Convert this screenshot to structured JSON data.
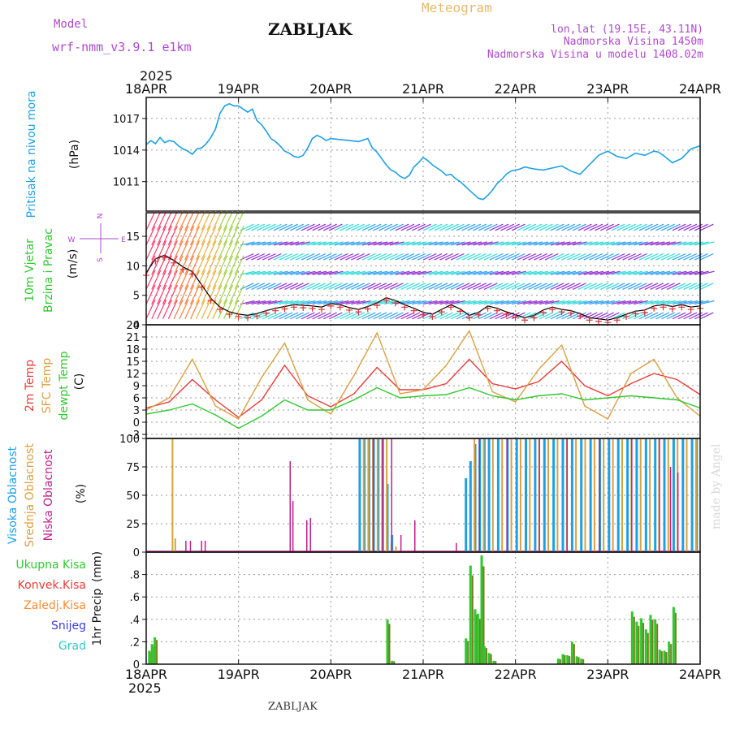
{
  "header": {
    "model_label": "Model",
    "model_name": "wrf-nmm_v3.9.1  e1km",
    "station_title": "ZABLJAK",
    "product_title": "Meteogram",
    "location_line": "lon,lat (19.15E, 43.11N)",
    "elevation_line": "Nadmorska Visina 1450m",
    "model_elevation_line": "Nadmorska Visina u modelu 1408.02m",
    "year_top": "2025",
    "year_bottom": "2025",
    "footer_station": "ZABLJAK",
    "watermark": "made by Angel"
  },
  "colors": {
    "pressure": "#1ea0e6",
    "temp2m": "#e83a3a",
    "sfc_temp": "#d9a040",
    "dewpt": "#2ec82e",
    "purple_text": "#b048d0",
    "meteogram_text": "#e8b870",
    "wind_black": "#000000",
    "wind_cross": "#e03030",
    "cloud_high": "#1ea0e6",
    "cloud_mid": "#d9a040",
    "cloud_low": "#c0208a",
    "precip_total": "#2ec82e",
    "precip_conv": "#e83a3a",
    "precip_frz": "#ff8a30",
    "precip_snow": "#3c3ce0",
    "precip_grad": "#30c8c8",
    "precip_bar": "#7a7a20"
  },
  "chart_data": [
    {
      "type": "line",
      "ylabel_main": "Pritisak na nivou mora",
      "ylabel_unit": "(hPa)",
      "x_ticks": [
        "18APR",
        "19APR",
        "20APR",
        "21APR",
        "22APR",
        "23APR",
        "24APR"
      ],
      "xlim_days": [
        0,
        6
      ],
      "ylim": [
        1008.2,
        1019.0
      ],
      "y_ticks": [
        1011,
        1014,
        1017
      ],
      "grid": true,
      "series": [
        {
          "color_key": "pressure",
          "x": [
            0,
            0.05,
            0.1,
            0.15,
            0.2,
            0.25,
            0.3,
            0.35,
            0.4,
            0.45,
            0.5,
            0.55,
            0.6,
            0.65,
            0.7,
            0.75,
            0.8,
            0.85,
            0.9,
            0.95,
            1.0,
            1.05,
            1.1,
            1.15,
            1.2,
            1.25,
            1.3,
            1.35,
            1.4,
            1.45,
            1.5,
            1.55,
            1.6,
            1.65,
            1.7,
            1.75,
            1.8,
            1.85,
            1.9,
            1.95,
            2.0,
            2.1,
            2.2,
            2.3,
            2.4,
            2.45,
            2.5,
            2.55,
            2.6,
            2.65,
            2.7,
            2.75,
            2.8,
            2.85,
            2.9,
            2.95,
            3.0,
            3.05,
            3.1,
            3.15,
            3.2,
            3.25,
            3.3,
            3.35,
            3.4,
            3.45,
            3.5,
            3.55,
            3.6,
            3.65,
            3.7,
            3.75,
            3.8,
            3.85,
            3.9,
            3.95,
            4.0,
            4.05,
            4.1,
            4.2,
            4.3,
            4.4,
            4.5,
            4.6,
            4.7,
            4.8,
            4.9,
            5.0,
            5.1,
            5.2,
            5.3,
            5.4,
            5.5,
            5.55,
            5.6,
            5.7,
            5.8,
            5.9,
            6.0
          ],
          "y": [
            1014.5,
            1014.9,
            1014.6,
            1015.2,
            1014.7,
            1014.9,
            1014.8,
            1014.4,
            1014.1,
            1013.9,
            1013.6,
            1014.1,
            1014.2,
            1014.6,
            1015.2,
            1016.0,
            1017.5,
            1018.2,
            1018.4,
            1018.2,
            1018.2,
            1017.9,
            1017.6,
            1017.9,
            1016.8,
            1016.4,
            1015.8,
            1015.1,
            1014.8,
            1014.4,
            1013.9,
            1013.7,
            1013.4,
            1013.3,
            1013.5,
            1014.2,
            1015.1,
            1015.4,
            1015.2,
            1014.9,
            1015.1,
            1015.0,
            1014.9,
            1014.8,
            1015.1,
            1014.2,
            1013.8,
            1013.2,
            1012.6,
            1012.1,
            1011.9,
            1011.5,
            1011.3,
            1011.6,
            1012.4,
            1012.8,
            1013.3,
            1013.0,
            1012.6,
            1012.3,
            1012.0,
            1011.6,
            1011.7,
            1011.3,
            1011.0,
            1010.6,
            1010.2,
            1009.8,
            1009.4,
            1009.3,
            1009.7,
            1010.2,
            1010.8,
            1011.2,
            1011.7,
            1012.0,
            1012.1,
            1012.2,
            1012.4,
            1012.2,
            1012.1,
            1012.3,
            1012.5,
            1012.0,
            1011.7,
            1012.6,
            1013.5,
            1013.9,
            1013.4,
            1013.2,
            1013.7,
            1013.5,
            1013.9,
            1013.8,
            1013.5,
            1012.8,
            1013.2,
            1014.1,
            1014.4
          ]
        }
      ]
    },
    {
      "type": "scatter",
      "ylabel_main": "10m Vjetar",
      "ylabel_sub": "Brzina i Pravac",
      "ylabel_unit": "(m/s)",
      "compass": {
        "n": "N",
        "e": "E",
        "w": "W",
        "s": "S"
      },
      "ylim": [
        0,
        19
      ],
      "y_ticks": [
        0,
        5,
        10,
        15
      ],
      "grid": true,
      "series": [
        {
          "name": "speed",
          "x": [
            0,
            0.1,
            0.2,
            0.3,
            0.4,
            0.5,
            0.6,
            0.7,
            0.8,
            0.9,
            1.0,
            1.1,
            1.2,
            1.3,
            1.4,
            1.5,
            1.6,
            1.7,
            1.8,
            1.9,
            2.0,
            2.1,
            2.2,
            2.3,
            2.4,
            2.5,
            2.6,
            2.7,
            2.8,
            2.9,
            3.0,
            3.1,
            3.2,
            3.3,
            3.4,
            3.5,
            3.6,
            3.7,
            3.8,
            3.9,
            4.0,
            4.1,
            4.2,
            4.3,
            4.4,
            4.5,
            4.6,
            4.7,
            4.8,
            4.9,
            5.0,
            5.1,
            5.2,
            5.3,
            5.4,
            5.5,
            5.6,
            5.7,
            5.8,
            5.9,
            6.0
          ],
          "y": [
            8.8,
            11.2,
            11.8,
            10.9,
            9.8,
            9.0,
            6.8,
            4.5,
            3.0,
            2.2,
            1.8,
            1.6,
            1.9,
            2.4,
            2.8,
            3.1,
            3.4,
            3.3,
            3.2,
            3.0,
            3.6,
            3.4,
            2.9,
            2.6,
            3.1,
            3.7,
            4.6,
            4.1,
            3.4,
            2.8,
            2.1,
            1.8,
            2.6,
            3.4,
            2.7,
            1.6,
            2.1,
            3.2,
            2.8,
            2.2,
            1.7,
            1.2,
            1.6,
            2.5,
            3.0,
            2.6,
            2.4,
            1.9,
            1.2,
            1.0,
            0.8,
            1.2,
            1.8,
            2.3,
            2.5,
            3.2,
            3.4,
            3.1,
            3.4,
            3.0,
            3.2
          ]
        }
      ]
    },
    {
      "type": "line",
      "ylabel_lines": [
        "2m Temp",
        "SFC Temp",
        "dewpt Temp"
      ],
      "ylabel_unit": "(C)",
      "ylim": [
        -4,
        24
      ],
      "y_ticks": [
        -3,
        0,
        3,
        6,
        9,
        12,
        15,
        18,
        21,
        24
      ],
      "grid": true,
      "x": [
        0,
        0.25,
        0.5,
        0.75,
        1.0,
        1.25,
        1.5,
        1.75,
        2.0,
        2.25,
        2.5,
        2.75,
        3.0,
        3.25,
        3.5,
        3.75,
        4.0,
        4.25,
        4.5,
        4.75,
        5.0,
        5.25,
        5.5,
        5.75,
        6.0
      ],
      "series": [
        {
          "name": "2m Temp",
          "color_key": "temp2m",
          "y": [
            3.5,
            5.0,
            10.5,
            5.5,
            1.2,
            5.5,
            14.0,
            6.5,
            3.8,
            7.0,
            13.5,
            8.0,
            8.0,
            9.5,
            15.5,
            9.5,
            8.2,
            10.0,
            15.0,
            9.0,
            6.5,
            9.5,
            12.0,
            10.5,
            6.8
          ]
        },
        {
          "name": "SFC Temp",
          "color_key": "sfc_temp",
          "y": [
            3.0,
            6.0,
            15.5,
            4.0,
            0.8,
            11.0,
            19.5,
            5.5,
            2.0,
            11.5,
            22.0,
            7.0,
            8.0,
            14.0,
            22.5,
            7.5,
            5.0,
            13.0,
            19.0,
            4.0,
            0.8,
            12.0,
            15.5,
            6.0,
            1.5
          ]
        },
        {
          "name": "dewpt Temp",
          "color_key": "dewpt",
          "y": [
            2.0,
            3.0,
            4.5,
            1.8,
            -1.5,
            1.5,
            5.5,
            3.0,
            3.0,
            5.5,
            8.5,
            6.0,
            6.5,
            6.8,
            8.5,
            6.5,
            5.5,
            6.5,
            7.0,
            5.5,
            6.0,
            6.5,
            6.0,
            5.5,
            3.5
          ]
        }
      ]
    },
    {
      "type": "bar",
      "ylabel_lines": [
        "Visoka Oblacnost",
        "Srednja Oblacnost",
        "Niska Oblacnost"
      ],
      "ylabel_unit": "(%)",
      "ylim": [
        0,
        100
      ],
      "y_ticks": [
        0,
        25,
        50,
        75,
        100
      ],
      "grid": true,
      "series": [
        {
          "name": "Visoka Oblacnost",
          "color_key": "cloud_high",
          "x": [
            0.25,
            0.5,
            2.3,
            2.35,
            2.4,
            2.45,
            2.5,
            2.55,
            2.6,
            2.65,
            3.45,
            3.5,
            3.55,
            3.6,
            3.65,
            3.7,
            3.8,
            3.9,
            4.0,
            4.1,
            4.2,
            4.3,
            4.4,
            4.5,
            4.6,
            4.7,
            4.8,
            4.9,
            5.0,
            5.1,
            5.2,
            5.3,
            5.4,
            5.5,
            5.6,
            5.7,
            5.8,
            5.9,
            5.95
          ],
          "values": [
            1,
            1,
            100,
            100,
            100,
            100,
            100,
            100,
            60,
            15,
            65,
            80,
            95,
            100,
            100,
            100,
            100,
            100,
            100,
            100,
            100,
            100,
            100,
            100,
            100,
            100,
            100,
            100,
            100,
            100,
            100,
            100,
            100,
            100,
            100,
            100,
            100,
            100,
            100
          ]
        },
        {
          "name": "Srednja Oblacnost",
          "color_key": "cloud_mid",
          "x": [
            0.25,
            0.28,
            2.32,
            2.37,
            2.42,
            2.47,
            2.52,
            2.57,
            2.62,
            2.67,
            3.52,
            3.62,
            3.72,
            3.82,
            3.92,
            4.02,
            4.12,
            4.22,
            4.32,
            4.42,
            4.52,
            4.62,
            4.72,
            4.82,
            4.92,
            5.02,
            5.12,
            5.22,
            5.32,
            5.42,
            5.52,
            5.62,
            5.72,
            5.82,
            5.92
          ],
          "values": [
            100,
            12,
            100,
            100,
            100,
            100,
            100,
            100,
            8,
            5,
            100,
            100,
            100,
            100,
            100,
            100,
            100,
            100,
            100,
            100,
            100,
            100,
            100,
            100,
            100,
            100,
            100,
            100,
            100,
            100,
            100,
            100,
            100,
            100,
            100
          ]
        },
        {
          "name": "Niska Oblacnost",
          "color_key": "cloud_low",
          "x": [
            0.37,
            0.42,
            0.54,
            0.58,
            1.5,
            1.53,
            1.68,
            1.72,
            2.4,
            2.5,
            2.6,
            2.7,
            2.85,
            3.3,
            3.55,
            3.85,
            4.2,
            4.5,
            4.85,
            5.2,
            5.5,
            5.62,
            5.7
          ],
          "values": [
            10,
            10,
            10,
            10,
            80,
            45,
            28,
            30,
            100,
            100,
            100,
            15,
            28,
            8,
            100,
            100,
            100,
            100,
            100,
            100,
            100,
            75,
            70
          ]
        }
      ]
    },
    {
      "type": "bar",
      "ylabel_main": "1hr Precip",
      "ylabel_unit": "(mm)",
      "legend": [
        "Ukupna  Kisa",
        "Konvek.Kisa",
        "Zaledj.Kisa",
        "Snijeg",
        "Grad"
      ],
      "ylim": [
        0,
        1.0
      ],
      "y_ticks": [
        0,
        0.2,
        0.4,
        0.6,
        0.8
      ],
      "grid": true,
      "series": [
        {
          "name": "Ukupna  Kisa",
          "color_key": "precip_total",
          "x": [
            0.02,
            0.05,
            0.08,
            2.6,
            2.65,
            3.45,
            3.5,
            3.55,
            3.58,
            3.62,
            3.65,
            3.7,
            3.75,
            4.45,
            4.5,
            4.55,
            4.6,
            4.65,
            4.7,
            5.25,
            5.3,
            5.35,
            5.4,
            5.45,
            5.5,
            5.55,
            5.6,
            5.65,
            5.7
          ],
          "values": [
            0.12,
            0.18,
            0.24,
            0.4,
            0.03,
            0.23,
            0.88,
            0.49,
            0.45,
            0.97,
            0.16,
            0.1,
            0.03,
            0.05,
            0.09,
            0.08,
            0.2,
            0.07,
            0.05,
            0.47,
            0.38,
            0.41,
            0.31,
            0.44,
            0.4,
            0.13,
            0.12,
            0.2,
            0.51
          ]
        }
      ]
    }
  ]
}
